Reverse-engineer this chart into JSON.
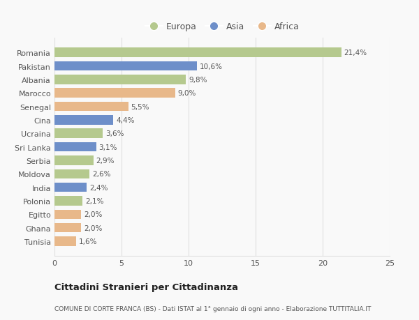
{
  "categories": [
    "Romania",
    "Pakistan",
    "Albania",
    "Marocco",
    "Senegal",
    "Cina",
    "Ucraina",
    "Sri Lanka",
    "Serbia",
    "Moldova",
    "India",
    "Polonia",
    "Egitto",
    "Ghana",
    "Tunisia"
  ],
  "values": [
    21.4,
    10.6,
    9.8,
    9.0,
    5.5,
    4.4,
    3.6,
    3.1,
    2.9,
    2.6,
    2.4,
    2.1,
    2.0,
    2.0,
    1.6
  ],
  "labels": [
    "21,4%",
    "10,6%",
    "9,8%",
    "9,0%",
    "5,5%",
    "4,4%",
    "3,6%",
    "3,1%",
    "2,9%",
    "2,6%",
    "2,4%",
    "2,1%",
    "2,0%",
    "2,0%",
    "1,6%"
  ],
  "colors": [
    "#b5c98e",
    "#6e8fc9",
    "#b5c98e",
    "#e8b88a",
    "#e8b88a",
    "#6e8fc9",
    "#b5c98e",
    "#6e8fc9",
    "#b5c98e",
    "#b5c98e",
    "#6e8fc9",
    "#b5c98e",
    "#e8b88a",
    "#e8b88a",
    "#e8b88a"
  ],
  "legend_labels": [
    "Europa",
    "Asia",
    "Africa"
  ],
  "legend_colors": [
    "#b5c98e",
    "#6e8fc9",
    "#e8b88a"
  ],
  "title": "Cittadini Stranieri per Cittadinanza",
  "subtitle": "COMUNE DI CORTE FRANCA (BS) - Dati ISTAT al 1° gennaio di ogni anno - Elaborazione TUTTITALIA.IT",
  "xlim": [
    0,
    25
  ],
  "xticks": [
    0,
    5,
    10,
    15,
    20,
    25
  ],
  "background_color": "#f9f9f9",
  "grid_color": "#e0e0e0",
  "text_color": "#555555",
  "title_color": "#222222"
}
